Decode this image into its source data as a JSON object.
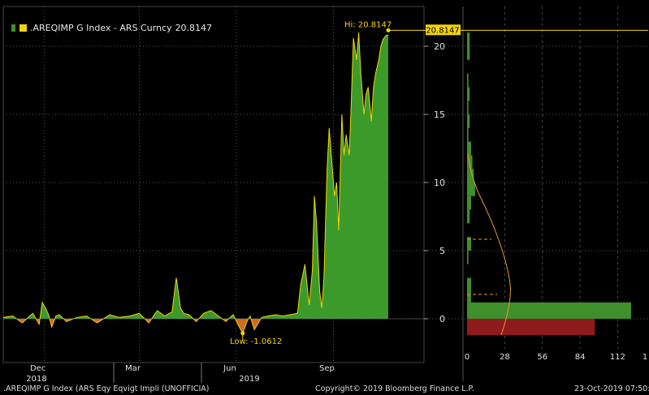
{
  "legend": {
    "label": ".AREQIMP G Index - ARS Curncy",
    "last_value": "20.8147"
  },
  "chart_data": {
    "type": "area",
    "series": [
      {
        "name": ".AREQIMP G Index - ARS Curncy",
        "color": "#3c9a2a",
        "line_color": "#f2d40c",
        "negative_color": "#d06a20",
        "x": [
          "2018-10-23",
          "2018-11-01",
          "2018-11-10",
          "2018-11-20",
          "2018-11-26",
          "2018-11-29",
          "2018-12-02",
          "2018-12-05",
          "2018-12-08",
          "2018-12-12",
          "2018-12-15",
          "2018-12-22",
          "2019-01-01",
          "2019-01-10",
          "2019-01-20",
          "2019-02-01",
          "2019-02-10",
          "2019-02-20",
          "2019-03-01",
          "2019-03-10",
          "2019-03-18",
          "2019-03-25",
          "2019-04-01",
          "2019-04-05",
          "2019-04-09",
          "2019-04-12",
          "2019-04-17",
          "2019-04-24",
          "2019-05-01",
          "2019-05-08",
          "2019-05-15",
          "2019-05-22",
          "2019-05-29",
          "2019-06-03",
          "2019-06-07",
          "2019-06-11",
          "2019-06-14",
          "2019-06-18",
          "2019-06-25",
          "2019-07-01",
          "2019-07-08",
          "2019-07-15",
          "2019-07-22",
          "2019-07-29",
          "2019-08-01",
          "2019-08-05",
          "2019-08-09",
          "2019-08-12",
          "2019-08-14",
          "2019-08-16",
          "2019-08-19",
          "2019-08-21",
          "2019-08-23",
          "2019-08-26",
          "2019-08-28",
          "2019-08-30",
          "2019-09-02",
          "2019-09-04",
          "2019-09-06",
          "2019-09-09",
          "2019-09-11",
          "2019-09-13",
          "2019-09-16",
          "2019-09-18",
          "2019-09-20",
          "2019-09-23",
          "2019-09-25",
          "2019-09-27",
          "2019-09-30",
          "2019-10-02",
          "2019-10-04",
          "2019-10-07",
          "2019-10-09",
          "2019-10-11",
          "2019-10-14",
          "2019-10-16",
          "2019-10-18",
          "2019-10-21",
          "2019-10-23"
        ],
        "values": [
          0.1,
          0.2,
          -0.3,
          0.4,
          -0.4,
          1.2,
          0.8,
          0.3,
          -0.6,
          0.2,
          0.3,
          -0.2,
          0.1,
          0.2,
          -0.3,
          0.3,
          0.1,
          0.2,
          0.4,
          -0.3,
          0.6,
          0.2,
          0.5,
          3.0,
          0.8,
          0.4,
          0.3,
          -0.2,
          0.4,
          0.6,
          0.2,
          -0.2,
          0.3,
          -0.5,
          -1.06,
          -0.2,
          0.2,
          -0.8,
          0.1,
          0.2,
          0.3,
          0.2,
          0.3,
          0.4,
          2.5,
          4.0,
          1.0,
          3.5,
          9.0,
          7.0,
          2.0,
          0.8,
          3.0,
          11.0,
          14.0,
          12.0,
          9.0,
          10.0,
          6.5,
          15.0,
          12.0,
          13.5,
          12.0,
          16.0,
          20.6,
          19.0,
          21.0,
          18.0,
          15.0,
          16.5,
          17.0,
          14.5,
          17.0,
          18.0,
          19.0,
          20.0,
          20.5,
          20.8,
          20.8147
        ]
      }
    ],
    "ylim": [
      -3,
      21.5
    ],
    "yticks": [
      "20",
      "15",
      "10",
      "5",
      "0"
    ],
    "xtick_labels": [
      "Dec",
      "Mar",
      "Jun",
      "Sep"
    ],
    "year_labels": [
      "2018",
      "2019"
    ],
    "annotations": {
      "high": "Hi: 20.8147",
      "low": "Low: -1.0612",
      "last_tag": "20.8147"
    },
    "histogram": {
      "xticks": [
        "0",
        "28",
        "56",
        "84",
        "112",
        "1"
      ],
      "bars": [
        {
          "from": 20,
          "to": 21,
          "count": 2
        },
        {
          "from": 19,
          "to": 20,
          "count": 2
        },
        {
          "from": 17,
          "to": 18,
          "count": 1
        },
        {
          "from": 16,
          "to": 17,
          "count": 2
        },
        {
          "from": 15,
          "to": 16,
          "count": 1
        },
        {
          "from": 14,
          "to": 15,
          "count": 2
        },
        {
          "from": 13,
          "to": 14,
          "count": 1
        },
        {
          "from": 12,
          "to": 13,
          "count": 3
        },
        {
          "from": 11,
          "to": 12,
          "count": 4
        },
        {
          "from": 10,
          "to": 11,
          "count": 5
        },
        {
          "from": 9,
          "to": 10,
          "count": 6
        },
        {
          "from": 8,
          "to": 9,
          "count": 3
        },
        {
          "from": 7,
          "to": 8,
          "count": 2
        },
        {
          "from": 5,
          "to": 6,
          "count": 3
        },
        {
          "from": 4,
          "to": 5,
          "count": 1
        },
        {
          "from": 2,
          "to": 3,
          "count": 3
        },
        {
          "from": 1,
          "to": 2,
          "count": 3
        },
        {
          "from": 0,
          "to": 1.2,
          "count": 122
        }
      ],
      "negative_bar": {
        "from": -1.2,
        "to": 0,
        "count": 95
      }
    }
  },
  "footer": {
    "left": ".AREQIMP G Index (ARS Eqy Eqvigt Impli (UNOFFICIA)",
    "center": "Copyright© 2019 Bloomberg Finance L.P.",
    "right": "23-Oct-2019 07:50:"
  }
}
